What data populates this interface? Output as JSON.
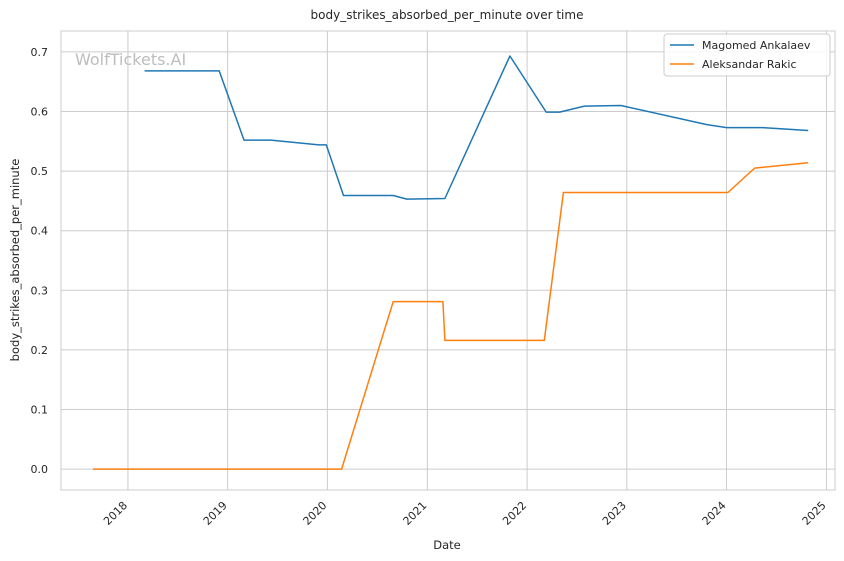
{
  "chart_data": {
    "type": "line",
    "title": "body_strikes_absorbed_per_minute over time",
    "xlabel": "Date",
    "ylabel": "body_strikes_absorbed_per_minute",
    "watermark": "WolfTickets.AI",
    "xlim": [
      "2017-05-01",
      "2025-02-01"
    ],
    "ylim": [
      -0.035,
      0.735
    ],
    "x_ticks": [
      {
        "date": "2018-01-01",
        "label": "2018"
      },
      {
        "date": "2019-01-01",
        "label": "2019"
      },
      {
        "date": "2020-01-01",
        "label": "2020"
      },
      {
        "date": "2021-01-01",
        "label": "2021"
      },
      {
        "date": "2022-01-01",
        "label": "2022"
      },
      {
        "date": "2023-01-01",
        "label": "2023"
      },
      {
        "date": "2024-01-01",
        "label": "2024"
      },
      {
        "date": "2025-01-01",
        "label": "2025"
      }
    ],
    "y_ticks": [
      {
        "value": 0.0,
        "label": "0.0"
      },
      {
        "value": 0.1,
        "label": "0.1"
      },
      {
        "value": 0.2,
        "label": "0.2"
      },
      {
        "value": 0.3,
        "label": "0.3"
      },
      {
        "value": 0.4,
        "label": "0.4"
      },
      {
        "value": 0.5,
        "label": "0.5"
      },
      {
        "value": 0.6,
        "label": "0.6"
      },
      {
        "value": 0.7,
        "label": "0.7"
      }
    ],
    "grid": true,
    "legend_position": "top-right",
    "series": [
      {
        "name": "Magomed Ankalaev",
        "color": "#1f77b4",
        "points": [
          {
            "x": "2018-03-03",
            "y": 0.668
          },
          {
            "x": "2018-12-01",
            "y": 0.668
          },
          {
            "x": "2019-03-02",
            "y": 0.552
          },
          {
            "x": "2019-06-08",
            "y": 0.552
          },
          {
            "x": "2019-12-01",
            "y": 0.544
          },
          {
            "x": "2019-12-28",
            "y": 0.544
          },
          {
            "x": "2020-02-29",
            "y": 0.459
          },
          {
            "x": "2020-08-29",
            "y": 0.459
          },
          {
            "x": "2020-10-18",
            "y": 0.453
          },
          {
            "x": "2021-03-06",
            "y": 0.454
          },
          {
            "x": "2021-10-30",
            "y": 0.693
          },
          {
            "x": "2022-03-12",
            "y": 0.599
          },
          {
            "x": "2022-04-30",
            "y": 0.599
          },
          {
            "x": "2022-07-30",
            "y": 0.609
          },
          {
            "x": "2022-12-10",
            "y": 0.61
          },
          {
            "x": "2023-10-21",
            "y": 0.578
          },
          {
            "x": "2024-01-01",
            "y": 0.573
          },
          {
            "x": "2024-05-11",
            "y": 0.573
          },
          {
            "x": "2024-10-26",
            "y": 0.568
          }
        ]
      },
      {
        "name": "Aleksandar Rakic",
        "color": "#ff7f0e",
        "points": [
          {
            "x": "2017-08-26",
            "y": 0.0
          },
          {
            "x": "2020-02-22",
            "y": 0.0
          },
          {
            "x": "2020-08-29",
            "y": 0.281
          },
          {
            "x": "2021-02-27",
            "y": 0.281
          },
          {
            "x": "2021-03-06",
            "y": 0.216
          },
          {
            "x": "2022-03-05",
            "y": 0.216
          },
          {
            "x": "2022-05-14",
            "y": 0.464
          },
          {
            "x": "2024-01-06",
            "y": 0.464
          },
          {
            "x": "2024-04-13",
            "y": 0.505
          },
          {
            "x": "2024-10-26",
            "y": 0.514
          }
        ]
      }
    ]
  }
}
